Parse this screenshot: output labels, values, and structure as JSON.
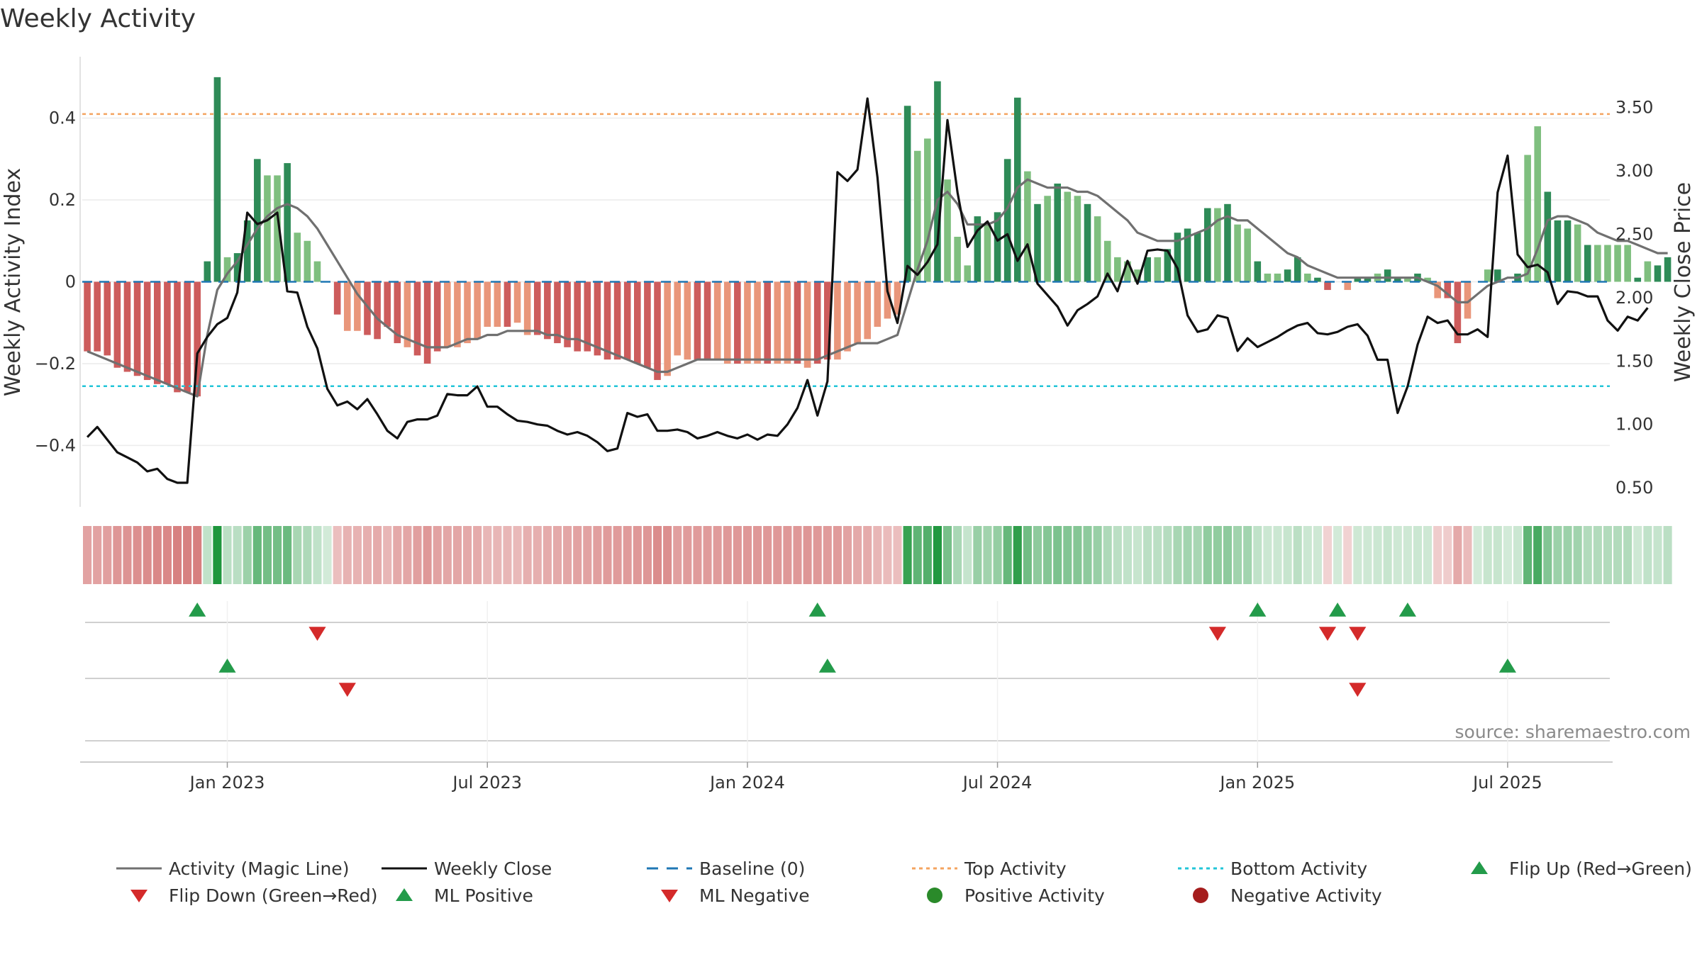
{
  "chart_data": {
    "type": "bar",
    "title": "Weekly Activity",
    "ylabel_left": "Weekly Activity Index",
    "ylabel_right": "Weekly Close Price",
    "source": "source: sharemaestro.com",
    "left_axis": {
      "ylim": [
        -0.55,
        0.55
      ],
      "ticks": [
        0.4,
        0.2,
        0,
        -0.2,
        -0.4
      ],
      "tick_labels": [
        "0.4",
        "0.2",
        "0",
        "−0.2",
        "−0.4"
      ]
    },
    "right_axis": {
      "ylim": [
        0.35,
        3.9
      ],
      "ticks": [
        3.5,
        3.0,
        2.5,
        2.0,
        1.5,
        1.0,
        0.5
      ],
      "tick_labels": [
        "3.50",
        "3.00",
        "2.50",
        "2.00",
        "1.50",
        "1.00",
        "0.50"
      ]
    },
    "x_axis": {
      "start_week": 0,
      "weeks": 153,
      "ticks": [
        14,
        40,
        66,
        91,
        117,
        142
      ],
      "tick_labels": [
        "Jan 2023",
        "Jul 2023",
        "Jan 2024",
        "Jul 2024",
        "Jan 2025",
        "Jul 2025"
      ]
    },
    "top_activity": 0.41,
    "bottom_activity": -0.255,
    "baseline": 0,
    "activity_values": [
      -0.17,
      -0.17,
      -0.18,
      -0.21,
      -0.22,
      -0.23,
      -0.24,
      -0.25,
      -0.25,
      -0.27,
      -0.27,
      -0.28,
      0.05,
      0.5,
      0.06,
      0.07,
      0.15,
      0.3,
      0.26,
      0.26,
      0.29,
      0.12,
      0.1,
      0.05,
      0.0,
      -0.08,
      -0.12,
      -0.12,
      -0.13,
      -0.14,
      -0.11,
      -0.15,
      -0.16,
      -0.18,
      -0.2,
      -0.17,
      -0.16,
      -0.16,
      -0.15,
      -0.14,
      -0.11,
      -0.11,
      -0.11,
      -0.1,
      -0.13,
      -0.13,
      -0.14,
      -0.15,
      -0.16,
      -0.17,
      -0.17,
      -0.18,
      -0.19,
      -0.19,
      -0.19,
      -0.2,
      -0.21,
      -0.24,
      -0.23,
      -0.18,
      -0.19,
      -0.19,
      -0.19,
      -0.19,
      -0.2,
      -0.2,
      -0.2,
      -0.2,
      -0.2,
      -0.2,
      -0.2,
      -0.2,
      -0.21,
      -0.2,
      -0.19,
      -0.19,
      -0.17,
      -0.15,
      -0.14,
      -0.11,
      -0.09,
      -0.08,
      0.43,
      0.32,
      0.35,
      0.49,
      0.25,
      0.11,
      0.04,
      0.16,
      0.14,
      0.17,
      0.3,
      0.45,
      0.27,
      0.19,
      0.21,
      0.24,
      0.22,
      0.21,
      0.19,
      0.16,
      0.1,
      0.06,
      0.05,
      0.03,
      0.06,
      0.06,
      0.08,
      0.12,
      0.13,
      0.12,
      0.18,
      0.18,
      0.19,
      0.14,
      0.13,
      0.05,
      0.02,
      0.02,
      0.03,
      0.06,
      0.02,
      0.01,
      -0.02,
      0.0,
      -0.02,
      0.01,
      0.01,
      0.02,
      0.03,
      0.01,
      0.01,
      0.02,
      0.01,
      -0.04,
      -0.04,
      -0.15,
      -0.09,
      0.0,
      0.03,
      0.03,
      0.0,
      0.02,
      0.31,
      0.38,
      0.22,
      0.15,
      0.15,
      0.14,
      0.09,
      0.09,
      0.09,
      0.09,
      0.09,
      0.01,
      0.05,
      0.04,
      0.06
    ],
    "bar_shades": [
      "d",
      "d",
      "d",
      "d",
      "d",
      "d",
      "d",
      "d",
      "d",
      "d",
      "d",
      "d",
      "d",
      "d",
      "l",
      "d",
      "d",
      "d",
      "l",
      "l",
      "d",
      "l",
      "l",
      "l",
      "d",
      "d",
      "l",
      "l",
      "d",
      "d",
      "d",
      "d",
      "l",
      "d",
      "d",
      "d",
      "l",
      "l",
      "l",
      "l",
      "l",
      "l",
      "d",
      "l",
      "l",
      "d",
      "d",
      "d",
      "d",
      "d",
      "d",
      "d",
      "d",
      "d",
      "d",
      "d",
      "d",
      "d",
      "l",
      "l",
      "l",
      "d",
      "d",
      "l",
      "l",
      "d",
      "l",
      "l",
      "d",
      "l",
      "l",
      "d",
      "l",
      "d",
      "d",
      "l",
      "l",
      "l",
      "l",
      "l",
      "l",
      "l",
      "d",
      "l",
      "l",
      "d",
      "l",
      "l",
      "l",
      "d",
      "l",
      "d",
      "d",
      "d",
      "l",
      "d",
      "l",
      "d",
      "l",
      "l",
      "d",
      "l",
      "l",
      "l",
      "l",
      "l",
      "d",
      "l",
      "d",
      "d",
      "d",
      "d",
      "d",
      "l",
      "d",
      "l",
      "l",
      "d",
      "l",
      "l",
      "d",
      "d",
      "l",
      "d",
      "d",
      "d",
      "l",
      "d",
      "d",
      "l",
      "d",
      "d",
      "l",
      "d",
      "l",
      "l",
      "d",
      "d",
      "l",
      "d",
      "l",
      "d",
      "l",
      "d",
      "l",
      "l",
      "d",
      "d",
      "d",
      "l",
      "d",
      "l",
      "l",
      "l",
      "l",
      "d",
      "l",
      "d",
      "d"
    ],
    "magic_line": [
      -0.17,
      -0.18,
      -0.19,
      -0.2,
      -0.21,
      -0.22,
      -0.23,
      -0.24,
      -0.25,
      -0.26,
      -0.27,
      -0.28,
      -0.13,
      -0.02,
      0.02,
      0.05,
      0.09,
      0.13,
      0.16,
      0.18,
      0.19,
      0.18,
      0.16,
      0.13,
      0.09,
      0.05,
      0.01,
      -0.03,
      -0.06,
      -0.09,
      -0.11,
      -0.13,
      -0.14,
      -0.15,
      -0.16,
      -0.16,
      -0.16,
      -0.15,
      -0.14,
      -0.14,
      -0.13,
      -0.13,
      -0.12,
      -0.12,
      -0.12,
      -0.12,
      -0.13,
      -0.13,
      -0.14,
      -0.14,
      -0.15,
      -0.16,
      -0.17,
      -0.18,
      -0.19,
      -0.2,
      -0.21,
      -0.22,
      -0.22,
      -0.21,
      -0.2,
      -0.19,
      -0.19,
      -0.19,
      -0.19,
      -0.19,
      -0.19,
      -0.19,
      -0.19,
      -0.19,
      -0.19,
      -0.19,
      -0.19,
      -0.19,
      -0.18,
      -0.17,
      -0.16,
      -0.15,
      -0.15,
      -0.15,
      -0.14,
      -0.13,
      -0.05,
      0.03,
      0.1,
      0.2,
      0.22,
      0.19,
      0.14,
      0.14,
      0.14,
      0.15,
      0.18,
      0.23,
      0.25,
      0.24,
      0.23,
      0.23,
      0.23,
      0.22,
      0.22,
      0.21,
      0.19,
      0.17,
      0.15,
      0.12,
      0.11,
      0.1,
      0.1,
      0.1,
      0.11,
      0.12,
      0.13,
      0.15,
      0.16,
      0.15,
      0.15,
      0.13,
      0.11,
      0.09,
      0.07,
      0.06,
      0.04,
      0.03,
      0.02,
      0.01,
      0.01,
      0.01,
      0.01,
      0.01,
      0.01,
      0.01,
      0.01,
      0.01,
      0.0,
      -0.01,
      -0.03,
      -0.05,
      -0.05,
      -0.03,
      -0.01,
      0.0,
      0.01,
      0.01,
      0.02,
      0.08,
      0.15,
      0.16,
      0.16,
      0.15,
      0.14,
      0.12,
      0.11,
      0.1,
      0.1,
      0.09,
      0.08,
      0.07,
      0.07
    ],
    "weekly_close": [
      0.9,
      0.98,
      0.88,
      0.78,
      0.74,
      0.7,
      0.63,
      0.65,
      0.57,
      0.54,
      0.54,
      1.56,
      1.69,
      1.79,
      1.84,
      2.04,
      2.67,
      2.58,
      2.61,
      2.67,
      2.05,
      2.04,
      1.77,
      1.6,
      1.28,
      1.15,
      1.18,
      1.12,
      1.2,
      1.08,
      0.95,
      0.89,
      1.02,
      1.04,
      1.04,
      1.07,
      1.24,
      1.23,
      1.23,
      1.3,
      1.14,
      1.14,
      1.08,
      1.03,
      1.02,
      1.0,
      0.99,
      0.95,
      0.92,
      0.94,
      0.91,
      0.86,
      0.79,
      0.81,
      1.09,
      1.06,
      1.08,
      0.95,
      0.95,
      0.96,
      0.94,
      0.89,
      0.91,
      0.94,
      0.91,
      0.89,
      0.92,
      0.88,
      0.92,
      0.91,
      1.0,
      1.13,
      1.35,
      1.07,
      1.34,
      2.99,
      2.92,
      3.01,
      3.57,
      2.95,
      2.05,
      1.8,
      2.25,
      2.18,
      2.28,
      2.42,
      3.4,
      2.83,
      2.4,
      2.53,
      2.6,
      2.45,
      2.5,
      2.29,
      2.42,
      2.11,
      2.02,
      1.93,
      1.78,
      1.9,
      1.95,
      2.01,
      2.19,
      2.05,
      2.29,
      2.11,
      2.37,
      2.38,
      2.37,
      2.23,
      1.86,
      1.73,
      1.75,
      1.86,
      1.84,
      1.58,
      1.68,
      1.61,
      1.65,
      1.69,
      1.74,
      1.78,
      1.8,
      1.72,
      1.71,
      1.73,
      1.77,
      1.79,
      1.7,
      1.51,
      1.51,
      1.09,
      1.3,
      1.63,
      1.85,
      1.8,
      1.82,
      1.71,
      1.71,
      1.75,
      1.69,
      2.83,
      3.12,
      2.34,
      2.24,
      2.26,
      2.2,
      1.95,
      2.05,
      2.04,
      2.01,
      2.01,
      1.82,
      1.74,
      1.85,
      1.82,
      1.92
    ],
    "ml_positive": [
      11,
      73,
      117,
      125,
      132
    ],
    "ml_negative": [
      23,
      113,
      124,
      127
    ],
    "flip_up": [
      14,
      74,
      142
    ],
    "flip_down": [
      26,
      127
    ],
    "colors": {
      "dark_green": "#2e8b57",
      "light_green": "#7fbf7f",
      "dark_red": "#cd5c5c",
      "light_red": "#e9967a",
      "magic_line": "#707070",
      "weekly_close": "#111111",
      "baseline": "#1f77b4",
      "top_activity": "#f4a460",
      "bottom_activity": "#22c5d8",
      "marker_green": "#239b4a",
      "marker_red": "#d42a2a",
      "positive_dot": "#2a8a2a",
      "negative_dot": "#a51d1d"
    },
    "legend": [
      {
        "label": "Activity (Magic Line)",
        "kind": "line",
        "color": "#707070"
      },
      {
        "label": "Weekly Close",
        "kind": "line",
        "color": "#111111"
      },
      {
        "label": "Baseline (0)",
        "kind": "dash",
        "color": "#1f77b4"
      },
      {
        "label": "Top Activity",
        "kind": "dot",
        "color": "#f4a460"
      },
      {
        "label": "Bottom Activity",
        "kind": "dot",
        "color": "#22c5d8"
      },
      {
        "label": "Flip Up (Red→Green)",
        "kind": "up",
        "color": "#239b4a"
      },
      {
        "label": "Flip Down (Green→Red)",
        "kind": "down",
        "color": "#d42a2a"
      },
      {
        "label": "ML Positive",
        "kind": "up",
        "color": "#239b4a"
      },
      {
        "label": "ML Negative",
        "kind": "down",
        "color": "#d42a2a"
      },
      {
        "label": "Positive Activity",
        "kind": "circle",
        "color": "#2a8a2a"
      },
      {
        "label": "Negative Activity",
        "kind": "circle",
        "color": "#a51d1d"
      }
    ]
  }
}
